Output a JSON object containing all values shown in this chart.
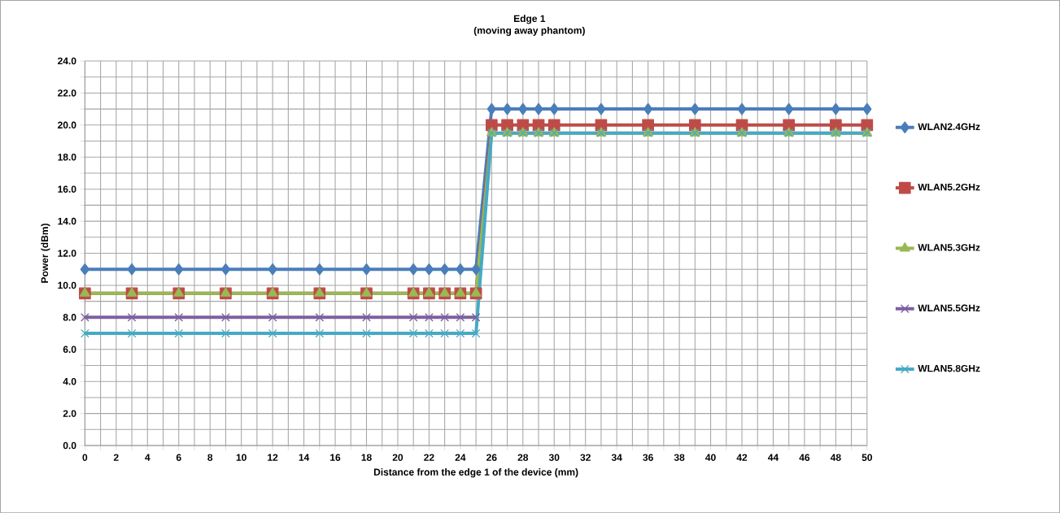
{
  "chart_data": {
    "type": "line",
    "title": "Edge 1",
    "subtitle": "(moving away phantom)",
    "xlabel": "Distance from the edge 1 of the device (mm)",
    "ylabel": "Power (dBm)",
    "x": [
      0,
      3,
      6,
      9,
      12,
      15,
      18,
      21,
      22,
      23,
      24,
      25,
      26,
      27,
      28,
      29,
      30,
      33,
      36,
      39,
      42,
      45,
      48,
      50
    ],
    "series": [
      {
        "name": "WLAN2.4GHz",
        "color": "#4a7ebb",
        "marker": "diamond",
        "values": [
          11,
          11,
          11,
          11,
          11,
          11,
          11,
          11,
          11,
          11,
          11,
          11,
          21,
          21,
          21,
          21,
          21,
          21,
          21,
          21,
          21,
          21,
          21,
          21
        ]
      },
      {
        "name": "WLAN5.2GHz",
        "color": "#be4b48",
        "marker": "square",
        "values": [
          9.5,
          9.5,
          9.5,
          9.5,
          9.5,
          9.5,
          9.5,
          9.5,
          9.5,
          9.5,
          9.5,
          9.5,
          20,
          20,
          20,
          20,
          20,
          20,
          20,
          20,
          20,
          20,
          20,
          20
        ]
      },
      {
        "name": "WLAN5.3GHz",
        "color": "#98b954",
        "marker": "triangle",
        "values": [
          9.5,
          9.5,
          9.5,
          9.5,
          9.5,
          9.5,
          9.5,
          9.5,
          9.5,
          9.5,
          9.5,
          9.5,
          19.5,
          19.5,
          19.5,
          19.5,
          19.5,
          19.5,
          19.5,
          19.5,
          19.5,
          19.5,
          19.5,
          19.5
        ]
      },
      {
        "name": "WLAN5.5GHz",
        "color": "#7d60a0",
        "marker": "cross",
        "values": [
          8,
          8,
          8,
          8,
          8,
          8,
          8,
          8,
          8,
          8,
          8,
          8,
          null,
          null,
          null,
          null,
          null,
          null,
          null,
          null,
          null,
          null,
          null,
          null
        ]
      },
      {
        "name": "WLAN5.8GHz",
        "color": "#46aac5",
        "marker": "cross",
        "values": [
          7,
          7,
          7,
          7,
          7,
          7,
          7,
          7,
          7,
          7,
          7,
          7,
          19.5,
          19.5,
          19.5,
          19.5,
          19.5,
          19.5,
          19.5,
          19.5,
          19.5,
          19.5,
          19.5,
          19.5
        ]
      }
    ],
    "xlim": [
      0,
      50
    ],
    "xticks": [
      0,
      {
        "value": 1,
        "label": null
      },
      2,
      {
        "value": 3,
        "label": null
      },
      4,
      {
        "value": 5,
        "label": null
      },
      6,
      {
        "value": 7,
        "label": null
      },
      8,
      {
        "value": 9,
        "label": null
      },
      10,
      {
        "value": 11,
        "label": null
      },
      12,
      {
        "value": 13,
        "label": null
      },
      14,
      {
        "value": 15,
        "label": null
      },
      16,
      {
        "value": 17,
        "label": null
      },
      18,
      {
        "value": 19,
        "label": null
      },
      20,
      {
        "value": 21,
        "label": null
      },
      22,
      {
        "value": 23,
        "label": null
      },
      24,
      {
        "value": 25,
        "label": null
      },
      26,
      {
        "value": 27,
        "label": null
      },
      28,
      {
        "value": 29,
        "label": null
      },
      30,
      {
        "value": 31,
        "label": null
      },
      32,
      {
        "value": 33,
        "label": null
      },
      34,
      {
        "value": 35,
        "label": null
      },
      36,
      {
        "value": 37,
        "label": null
      },
      38,
      {
        "value": 39,
        "label": null
      },
      40,
      {
        "value": 41,
        "label": null
      },
      42,
      {
        "value": 43,
        "label": null
      },
      44,
      {
        "value": 45,
        "label": null
      },
      46,
      {
        "value": 47,
        "label": null
      },
      48,
      {
        "value": 49,
        "label": null
      },
      50
    ],
    "ylim": [
      0,
      24
    ],
    "yticks": [
      {
        "value": 0,
        "label": "0.0"
      },
      {
        "value": 1,
        "label": null
      },
      {
        "value": 2,
        "label": "2.0"
      },
      {
        "value": 3,
        "label": null
      },
      {
        "value": 4,
        "label": "4.0"
      },
      {
        "value": 5,
        "label": null
      },
      {
        "value": 6,
        "label": "6.0"
      },
      {
        "value": 7,
        "label": null
      },
      {
        "value": 8,
        "label": "8.0"
      },
      {
        "value": 9,
        "label": null
      },
      {
        "value": 10,
        "label": "10.0"
      },
      {
        "value": 11,
        "label": null
      },
      {
        "value": 12,
        "label": "12.0"
      },
      {
        "value": 13,
        "label": null
      },
      {
        "value": 14,
        "label": "14.0"
      },
      {
        "value": 15,
        "label": null
      },
      {
        "value": 16,
        "label": "16.0"
      },
      {
        "value": 17,
        "label": null
      },
      {
        "value": 18,
        "label": "18.0"
      },
      {
        "value": 19,
        "label": null
      },
      {
        "value": 20,
        "label": "20.0"
      },
      {
        "value": 21,
        "label": null
      },
      {
        "value": 22,
        "label": "22.0"
      },
      {
        "value": 23,
        "label": null
      },
      {
        "value": 24,
        "label": "24.0"
      }
    ],
    "grid": true,
    "legend": "right",
    "line_style": "solid"
  }
}
